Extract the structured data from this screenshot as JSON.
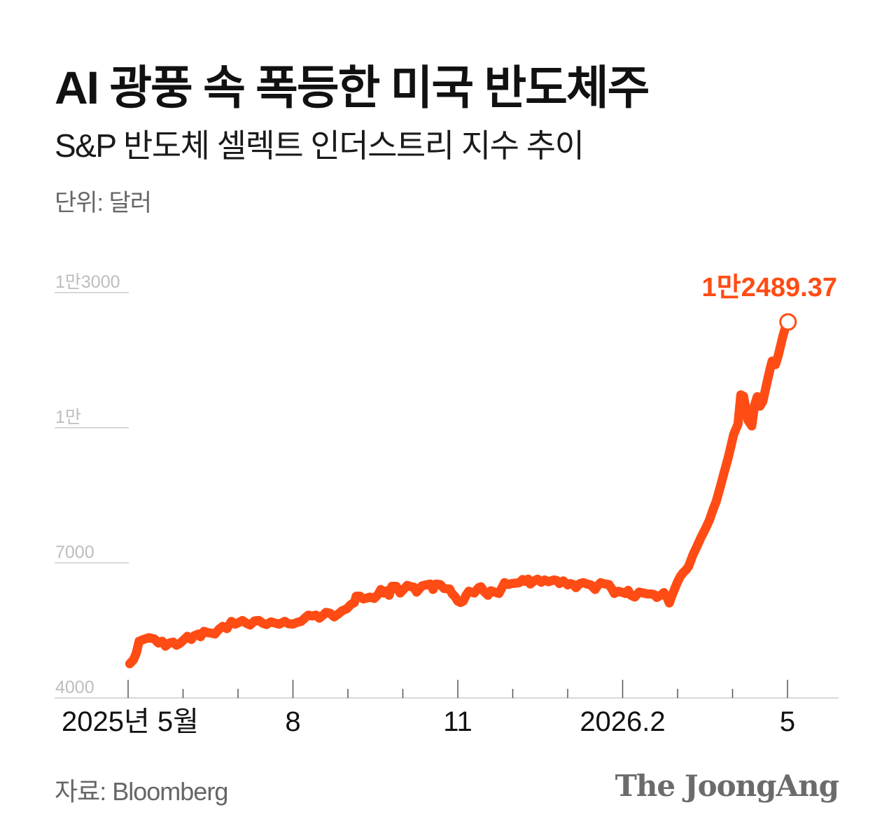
{
  "header": {
    "title": "AI 광풍 속 폭등한 미국 반도체주",
    "subtitle": "S&P 반도체 셀렉트 인더스트리 지수 추이",
    "unit": "단위: 달러"
  },
  "footer": {
    "source": "자료: Bloomberg",
    "brand": "The JoongAng"
  },
  "colors": {
    "line": "#ff4c14",
    "axis": "#cccccc",
    "grid": "#cccccc",
    "tick_text": "#bdbdbd"
  },
  "chart_data": {
    "type": "line",
    "title": "AI 광풍 속 폭등한 미국 반도체주",
    "subtitle": "S&P 반도체 셀렉트 인더스트리 지수 추이",
    "ylabel": "단위: 달러",
    "ylim": [
      4000,
      13000
    ],
    "yticks": [
      {
        "value": 4000,
        "label": "4000"
      },
      {
        "value": 7000,
        "label": "7000"
      },
      {
        "value": 10000,
        "label": "1만"
      },
      {
        "value": 13000,
        "label": "1만3000"
      }
    ],
    "xlim": [
      0,
      12.93
    ],
    "xtick_minor": [
      0,
      1,
      2,
      3,
      4,
      5,
      6,
      7,
      8,
      9,
      10,
      11,
      12
    ],
    "xtick_labels": [
      {
        "value": 0,
        "label": "2025년 5월"
      },
      {
        "value": 3,
        "label": "8"
      },
      {
        "value": 6,
        "label": "11"
      },
      {
        "value": 9,
        "label": "2026.2"
      },
      {
        "value": 12,
        "label": "5"
      }
    ],
    "grid": false,
    "series": [
      {
        "color": "#ff4c14",
        "points": [
          [
            0.03,
            4760
          ],
          [
            0.1,
            4850
          ],
          [
            0.15,
            5000
          ],
          [
            0.2,
            5260
          ],
          [
            0.28,
            5300
          ],
          [
            0.38,
            5340
          ],
          [
            0.48,
            5310
          ],
          [
            0.55,
            5220
          ],
          [
            0.62,
            5260
          ],
          [
            0.68,
            5150
          ],
          [
            0.75,
            5220
          ],
          [
            0.82,
            5240
          ],
          [
            0.88,
            5170
          ],
          [
            0.95,
            5220
          ],
          [
            1.02,
            5300
          ],
          [
            1.08,
            5370
          ],
          [
            1.15,
            5300
          ],
          [
            1.2,
            5380
          ],
          [
            1.28,
            5420
          ],
          [
            1.32,
            5360
          ],
          [
            1.38,
            5480
          ],
          [
            1.45,
            5450
          ],
          [
            1.52,
            5440
          ],
          [
            1.58,
            5420
          ],
          [
            1.65,
            5520
          ],
          [
            1.72,
            5590
          ],
          [
            1.8,
            5540
          ],
          [
            1.88,
            5700
          ],
          [
            1.95,
            5640
          ],
          [
            2.02,
            5680
          ],
          [
            2.08,
            5720
          ],
          [
            2.15,
            5660
          ],
          [
            2.22,
            5620
          ],
          [
            2.3,
            5710
          ],
          [
            2.38,
            5720
          ],
          [
            2.45,
            5660
          ],
          [
            2.52,
            5630
          ],
          [
            2.6,
            5690
          ],
          [
            2.68,
            5660
          ],
          [
            2.75,
            5640
          ],
          [
            2.85,
            5700
          ],
          [
            2.92,
            5650
          ],
          [
            3.0,
            5640
          ],
          [
            3.08,
            5680
          ],
          [
            3.15,
            5700
          ],
          [
            3.22,
            5780
          ],
          [
            3.28,
            5840
          ],
          [
            3.35,
            5820
          ],
          [
            3.42,
            5840
          ],
          [
            3.48,
            5770
          ],
          [
            3.55,
            5840
          ],
          [
            3.6,
            5900
          ],
          [
            3.68,
            5880
          ],
          [
            3.75,
            5800
          ],
          [
            3.82,
            5860
          ],
          [
            3.9,
            5940
          ],
          [
            3.98,
            5980
          ],
          [
            4.05,
            6070
          ],
          [
            4.12,
            6120
          ],
          [
            4.15,
            6260
          ],
          [
            4.22,
            6260
          ],
          [
            4.28,
            6200
          ],
          [
            4.35,
            6220
          ],
          [
            4.4,
            6240
          ],
          [
            4.48,
            6210
          ],
          [
            4.55,
            6300
          ],
          [
            4.6,
            6410
          ],
          [
            4.65,
            6330
          ],
          [
            4.7,
            6380
          ],
          [
            4.75,
            6280
          ],
          [
            4.8,
            6480
          ],
          [
            4.88,
            6480
          ],
          [
            4.95,
            6330
          ],
          [
            5.02,
            6420
          ],
          [
            5.08,
            6500
          ],
          [
            5.15,
            6470
          ],
          [
            5.2,
            6460
          ],
          [
            5.25,
            6350
          ],
          [
            5.3,
            6420
          ],
          [
            5.35,
            6490
          ],
          [
            5.42,
            6510
          ],
          [
            5.5,
            6530
          ],
          [
            5.55,
            6410
          ],
          [
            5.6,
            6530
          ],
          [
            5.68,
            6520
          ],
          [
            5.75,
            6430
          ],
          [
            5.85,
            6420
          ],
          [
            5.9,
            6310
          ],
          [
            5.95,
            6250
          ],
          [
            6.0,
            6150
          ],
          [
            6.05,
            6120
          ],
          [
            6.1,
            6150
          ],
          [
            6.15,
            6280
          ],
          [
            6.2,
            6370
          ],
          [
            6.25,
            6350
          ],
          [
            6.3,
            6330
          ],
          [
            6.38,
            6450
          ],
          [
            6.42,
            6470
          ],
          [
            6.48,
            6360
          ],
          [
            6.55,
            6280
          ],
          [
            6.6,
            6380
          ],
          [
            6.68,
            6350
          ],
          [
            6.75,
            6320
          ],
          [
            6.8,
            6440
          ],
          [
            6.85,
            6560
          ],
          [
            6.92,
            6520
          ],
          [
            6.98,
            6540
          ],
          [
            7.05,
            6550
          ],
          [
            7.12,
            6560
          ],
          [
            7.18,
            6630
          ],
          [
            7.22,
            6590
          ],
          [
            7.28,
            6640
          ],
          [
            7.32,
            6530
          ],
          [
            7.38,
            6590
          ],
          [
            7.45,
            6640
          ],
          [
            7.52,
            6570
          ],
          [
            7.58,
            6620
          ],
          [
            7.65,
            6580
          ],
          [
            7.75,
            6620
          ],
          [
            7.8,
            6610
          ],
          [
            7.85,
            6540
          ],
          [
            7.92,
            6600
          ],
          [
            8.0,
            6510
          ],
          [
            8.05,
            6540
          ],
          [
            8.1,
            6520
          ],
          [
            8.15,
            6450
          ],
          [
            8.22,
            6540
          ],
          [
            8.28,
            6560
          ],
          [
            8.35,
            6530
          ],
          [
            8.42,
            6510
          ],
          [
            8.5,
            6410
          ],
          [
            8.55,
            6500
          ],
          [
            8.6,
            6560
          ],
          [
            8.68,
            6530
          ],
          [
            8.75,
            6520
          ],
          [
            8.8,
            6430
          ],
          [
            8.85,
            6320
          ],
          [
            8.92,
            6370
          ],
          [
            8.98,
            6350
          ],
          [
            9.05,
            6320
          ],
          [
            9.1,
            6390
          ],
          [
            9.15,
            6280
          ],
          [
            9.22,
            6240
          ],
          [
            9.3,
            6350
          ],
          [
            9.38,
            6330
          ],
          [
            9.45,
            6310
          ],
          [
            9.52,
            6310
          ],
          [
            9.58,
            6290
          ],
          [
            9.62,
            6230
          ],
          [
            9.7,
            6290
          ],
          [
            9.75,
            6340
          ],
          [
            9.8,
            6250
          ],
          [
            9.85,
            6110
          ],
          [
            9.9,
            6280
          ],
          [
            10.0,
            6580
          ],
          [
            10.05,
            6700
          ],
          [
            10.1,
            6780
          ],
          [
            10.15,
            6840
          ],
          [
            10.2,
            6920
          ],
          [
            10.28,
            7180
          ],
          [
            10.35,
            7360
          ],
          [
            10.42,
            7550
          ],
          [
            10.5,
            7740
          ],
          [
            10.58,
            7950
          ],
          [
            10.65,
            8200
          ],
          [
            10.7,
            8350
          ],
          [
            10.78,
            8700
          ],
          [
            10.85,
            9020
          ],
          [
            10.92,
            9330
          ],
          [
            10.98,
            9640
          ],
          [
            11.02,
            9850
          ],
          [
            11.1,
            10080
          ],
          [
            11.15,
            10730
          ],
          [
            11.2,
            10700
          ],
          [
            11.28,
            10170
          ],
          [
            11.35,
            10040
          ],
          [
            11.4,
            10500
          ],
          [
            11.45,
            10690
          ],
          [
            11.5,
            10480
          ],
          [
            11.55,
            10580
          ],
          [
            11.62,
            10970
          ],
          [
            11.68,
            11290
          ],
          [
            11.72,
            11480
          ],
          [
            11.78,
            11400
          ],
          [
            11.83,
            11600
          ],
          [
            11.88,
            11850
          ],
          [
            11.92,
            12050
          ],
          [
            11.96,
            12220
          ],
          [
            12.01,
            12349
          ]
        ]
      }
    ],
    "end_point": {
      "x": 12.01,
      "y": 12349,
      "label": "1만2489.37"
    }
  }
}
